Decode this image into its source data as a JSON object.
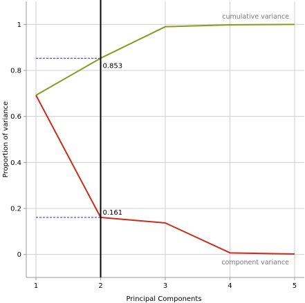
{
  "chart_data": {
    "type": "line",
    "xlabel": "Principal Components",
    "ylabel": "Proportion of variance",
    "x": [
      1,
      2,
      3,
      4,
      5
    ],
    "xlim": [
      0.85,
      5.15
    ],
    "ylim": [
      -0.1,
      1.1
    ],
    "x_ticks": [
      "1",
      "2",
      "3",
      "4",
      "5"
    ],
    "y_ticks": [
      "0",
      "0.2",
      "0.4",
      "0.6",
      "0.8",
      "1"
    ],
    "y_tick_values": [
      0,
      0.2,
      0.4,
      0.6,
      0.8,
      1
    ],
    "grid": true,
    "series": [
      {
        "name": "cumulative variance",
        "values": [
          0.692,
          0.853,
          0.99,
          0.998,
          1.0
        ],
        "color": "#8a9a20"
      },
      {
        "name": "component variance",
        "values": [
          0.692,
          0.161,
          0.137,
          0.007,
          0.002
        ],
        "color": "#cc2a1a"
      }
    ],
    "selected_component": 2,
    "annotations": [
      {
        "label": "0.853",
        "x": 2,
        "y": 0.853
      },
      {
        "label": "0.161",
        "x": 2,
        "y": 0.161
      }
    ],
    "colors": {
      "grid": "#cfcfcf",
      "axis": "#9a9a9a",
      "cutoff_line": "#000000",
      "guide": "#2222cc"
    }
  }
}
